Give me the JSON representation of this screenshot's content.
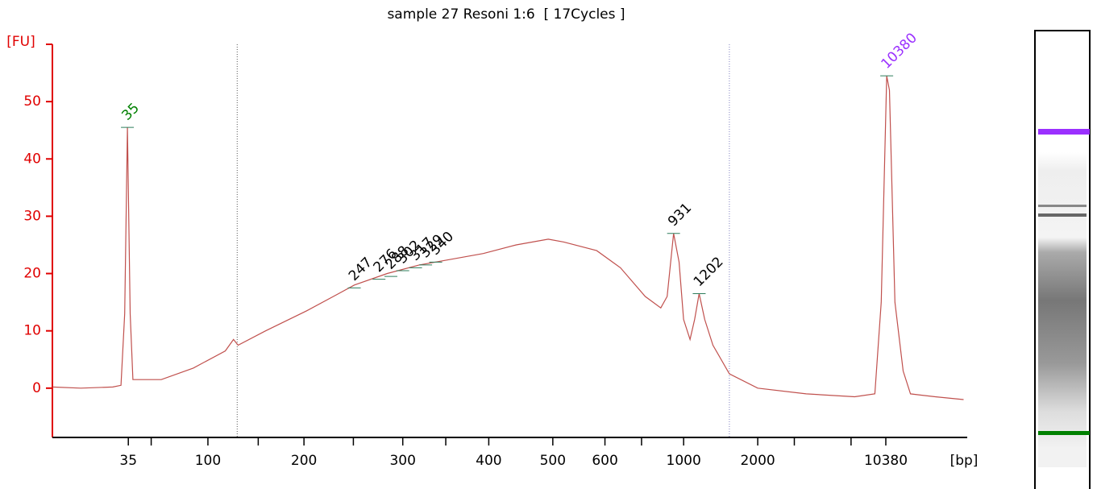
{
  "chart_data": {
    "type": "line",
    "title": "sample 27 Resoni 1:6  [ 17Cycles ]",
    "ylabel": "[FU]",
    "xlabel": "[bp]",
    "color": "#c0504d",
    "x": [
      0,
      3.1,
      6.6,
      7.5,
      7.9,
      8.2,
      8.5,
      8.8,
      11.9,
      15.4,
      18.9,
      19.8,
      20.3,
      23.3,
      27.8,
      31.3,
      33.0,
      36.6,
      40.1,
      43.6,
      47.1,
      50.7,
      54.2,
      55.9,
      59.5,
      62.1,
      64.8,
      66.5,
      67.2,
      67.9,
      68.5,
      69.0,
      69.7,
      70.2,
      70.7,
      71.3,
      72.2,
      74.0,
      77.1,
      82.4,
      87.7,
      89.9,
      90.6,
      91.2,
      91.5,
      92.1,
      93.0,
      93.8,
      96.5,
      99.6
    ],
    "values": [
      0.2,
      0,
      0.2,
      0.5,
      13,
      45.5,
      13,
      1.5,
      1.5,
      3.5,
      6.5,
      8.5,
      7.5,
      10,
      13.5,
      16.5,
      18,
      20,
      21.5,
      22.5,
      23.5,
      25,
      26,
      25.5,
      24,
      21,
      16,
      14,
      16,
      27,
      22,
      12,
      8.5,
      12,
      16.5,
      12,
      7.5,
      2.5,
      0,
      -1,
      -1.5,
      -1,
      15,
      54.5,
      52,
      15,
      3,
      -1,
      -1.5,
      -2
    ],
    "peaks": [
      {
        "label": "35",
        "x": 8.2,
        "y": 45.5,
        "color": "#008000"
      },
      {
        "label": "247",
        "x": 33.0,
        "y": 17.5,
        "color": "#000000"
      },
      {
        "label": "276",
        "x": 35.7,
        "y": 19,
        "color": "#000000"
      },
      {
        "label": "288",
        "x": 37.0,
        "y": 19.5,
        "color": "#000000"
      },
      {
        "label": "302",
        "x": 38.3,
        "y": 20.5,
        "color": "#000000"
      },
      {
        "label": "317",
        "x": 39.7,
        "y": 21,
        "color": "#000000"
      },
      {
        "label": "329",
        "x": 40.8,
        "y": 21.5,
        "color": "#000000"
      },
      {
        "label": "340",
        "x": 41.9,
        "y": 22,
        "color": "#000000"
      },
      {
        "label": "931",
        "x": 67.9,
        "y": 27,
        "color": "#000000"
      },
      {
        "label": "1202",
        "x": 70.7,
        "y": 16.5,
        "color": "#000000"
      },
      {
        "label": "10380",
        "x": 91.2,
        "y": 54.5,
        "color": "#9b30ff"
      }
    ],
    "regions": [
      20.2,
      74.0
    ],
    "xlim": [
      0,
      100
    ],
    "ylim": [
      -8.6,
      60
    ],
    "yticks": [
      0,
      10,
      20,
      30,
      40,
      50
    ],
    "xticks": [
      {
        "value": 8.3,
        "label": "35"
      },
      {
        "value": 10.8,
        "label": null
      },
      {
        "value": 17.0,
        "label": "100"
      },
      {
        "value": 22.5,
        "label": null
      },
      {
        "value": 27.5,
        "label": "200"
      },
      {
        "value": 32.9,
        "label": null
      },
      {
        "value": 38.3,
        "label": "300"
      },
      {
        "value": 43.0,
        "label": null
      },
      {
        "value": 47.7,
        "label": "400"
      },
      {
        "value": 54.7,
        "label": "500"
      },
      {
        "value": 60.4,
        "label": "600"
      },
      {
        "value": 64.4,
        "label": null
      },
      {
        "value": 69.0,
        "label": "1000"
      },
      {
        "value": 77.1,
        "label": "2000"
      },
      {
        "value": 81.1,
        "label": null
      },
      {
        "value": 87.3,
        "label": null
      },
      {
        "value": 91.1,
        "label": "10380"
      }
    ]
  }
}
